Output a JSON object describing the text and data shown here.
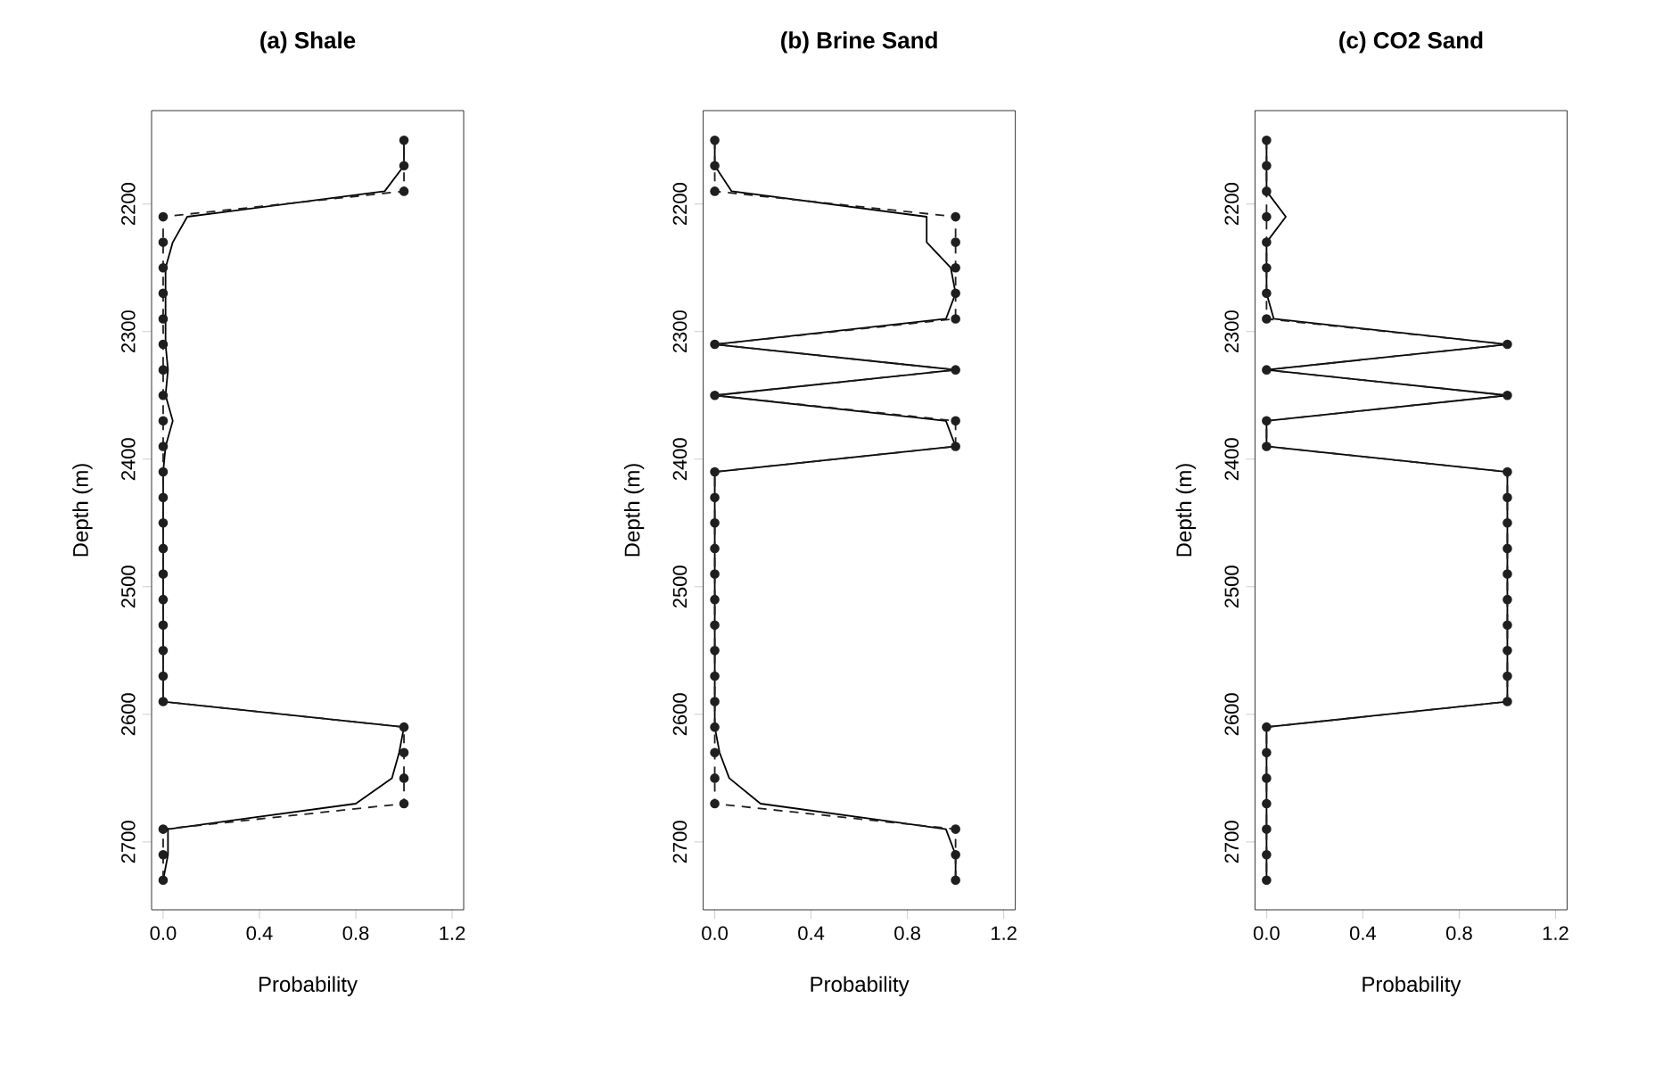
{
  "chart_data": [
    {
      "type": "line",
      "title": "(a) Shale",
      "xlabel": "Probability",
      "ylabel": "Depth (m)",
      "xlim": [
        -0.048,
        1.248
      ],
      "ylim": [
        2753.2,
        2126.8
      ],
      "xticks": [
        {
          "value": 0,
          "label": "0.0"
        },
        {
          "value": 0.4,
          "label": "0.4"
        },
        {
          "value": 0.8,
          "label": "0.8"
        },
        {
          "value": 1.2,
          "label": "1.2"
        }
      ],
      "yticks": [
        2200,
        2300,
        2400,
        2500,
        2600,
        2700
      ],
      "series": [
        {
          "color": "#000000",
          "line_style": "solid",
          "marker": "none",
          "x": [
            1,
            1,
            0.92,
            0.1,
            0.04,
            0.01,
            0.01,
            0.01,
            0.01,
            0.02,
            0.01,
            0.04,
            0.01,
            0,
            0,
            0,
            0,
            0,
            0,
            0,
            0,
            0,
            0,
            1,
            0.98,
            0.95,
            0.8,
            0.02,
            0.02,
            0
          ],
          "values": [
            2150,
            2170,
            2190,
            2210,
            2230,
            2250,
            2270,
            2290,
            2310,
            2330,
            2350,
            2370,
            2390,
            2410,
            2430,
            2450,
            2470,
            2490,
            2510,
            2530,
            2550,
            2570,
            2590,
            2610,
            2630,
            2650,
            2670,
            2690,
            2710,
            2730
          ]
        },
        {
          "color": "#1f1f1f",
          "line_style": "dashed",
          "marker": "circle",
          "x": [
            1,
            1,
            1,
            0,
            0,
            0,
            0,
            0,
            0,
            0,
            0,
            0,
            0,
            0,
            0,
            0,
            0,
            0,
            0,
            0,
            0,
            0,
            0,
            1,
            1,
            1,
            1,
            0,
            0,
            0
          ],
          "values": [
            2150,
            2170,
            2190,
            2210,
            2230,
            2250,
            2270,
            2290,
            2310,
            2330,
            2350,
            2370,
            2390,
            2410,
            2430,
            2450,
            2470,
            2490,
            2510,
            2530,
            2550,
            2570,
            2590,
            2610,
            2630,
            2650,
            2670,
            2690,
            2710,
            2730
          ]
        }
      ]
    },
    {
      "type": "line",
      "title": "(b) Brine Sand",
      "xlabel": "Probability",
      "ylabel": "Depth (m)",
      "xlim": [
        -0.048,
        1.248
      ],
      "ylim": [
        2753.2,
        2126.8
      ],
      "xticks": [
        {
          "value": 0,
          "label": "0.0"
        },
        {
          "value": 0.4,
          "label": "0.4"
        },
        {
          "value": 0.8,
          "label": "0.8"
        },
        {
          "value": 1.2,
          "label": "1.2"
        }
      ],
      "yticks": [
        2200,
        2300,
        2400,
        2500,
        2600,
        2700
      ],
      "series": [
        {
          "color": "#000000",
          "line_style": "solid",
          "marker": "none",
          "x": [
            0,
            0,
            0.07,
            0.88,
            0.88,
            0.98,
            1,
            0.96,
            0,
            1,
            0,
            0.96,
            1,
            0,
            0,
            0,
            0,
            0,
            0,
            0,
            0,
            0,
            0,
            0,
            0.02,
            0.06,
            0.19,
            0.96,
            1,
            1
          ],
          "values": [
            2150,
            2170,
            2190,
            2210,
            2230,
            2250,
            2270,
            2290,
            2310,
            2330,
            2350,
            2370,
            2390,
            2410,
            2430,
            2450,
            2470,
            2490,
            2510,
            2530,
            2550,
            2570,
            2590,
            2610,
            2630,
            2650,
            2670,
            2690,
            2710,
            2730
          ]
        },
        {
          "color": "#1f1f1f",
          "line_style": "dashed",
          "marker": "circle",
          "x": [
            0,
            0,
            0,
            1,
            1,
            1,
            1,
            1,
            0,
            1,
            0,
            1,
            1,
            0,
            0,
            0,
            0,
            0,
            0,
            0,
            0,
            0,
            0,
            0,
            0,
            0,
            0,
            1,
            1,
            1
          ],
          "values": [
            2150,
            2170,
            2190,
            2210,
            2230,
            2250,
            2270,
            2290,
            2310,
            2330,
            2350,
            2370,
            2390,
            2410,
            2430,
            2450,
            2470,
            2490,
            2510,
            2530,
            2550,
            2570,
            2590,
            2610,
            2630,
            2650,
            2670,
            2690,
            2710,
            2730
          ]
        }
      ]
    },
    {
      "type": "line",
      "title": "(c) CO2 Sand",
      "xlabel": "Probability",
      "ylabel": "Depth (m)",
      "xlim": [
        -0.048,
        1.248
      ],
      "ylim": [
        2753.2,
        2126.8
      ],
      "xticks": [
        {
          "value": 0,
          "label": "0.0"
        },
        {
          "value": 0.4,
          "label": "0.4"
        },
        {
          "value": 0.8,
          "label": "0.8"
        },
        {
          "value": 1.2,
          "label": "1.2"
        }
      ],
      "yticks": [
        2200,
        2300,
        2400,
        2500,
        2600,
        2700
      ],
      "series": [
        {
          "color": "#000000",
          "line_style": "solid",
          "marker": "none",
          "x": [
            0,
            0,
            0,
            0.08,
            0,
            0,
            0,
            0.03,
            1,
            0,
            1,
            0,
            0,
            1,
            1,
            1,
            1,
            1,
            1,
            1,
            1,
            1,
            1,
            0,
            0,
            0,
            0,
            0,
            0,
            0
          ],
          "values": [
            2150,
            2170,
            2190,
            2210,
            2230,
            2250,
            2270,
            2290,
            2310,
            2330,
            2350,
            2370,
            2390,
            2410,
            2430,
            2450,
            2470,
            2490,
            2510,
            2530,
            2550,
            2570,
            2590,
            2610,
            2630,
            2650,
            2670,
            2690,
            2710,
            2730
          ]
        },
        {
          "color": "#1f1f1f",
          "line_style": "dashed",
          "marker": "circle",
          "x": [
            0,
            0,
            0,
            0,
            0,
            0,
            0,
            0,
            1,
            0,
            1,
            0,
            0,
            1,
            1,
            1,
            1,
            1,
            1,
            1,
            1,
            1,
            1,
            0,
            0,
            0,
            0,
            0,
            0,
            0
          ],
          "values": [
            2150,
            2170,
            2190,
            2210,
            2230,
            2250,
            2270,
            2290,
            2310,
            2330,
            2350,
            2370,
            2390,
            2410,
            2430,
            2450,
            2470,
            2490,
            2510,
            2530,
            2550,
            2570,
            2590,
            2610,
            2630,
            2650,
            2670,
            2690,
            2710,
            2730
          ]
        }
      ]
    }
  ]
}
